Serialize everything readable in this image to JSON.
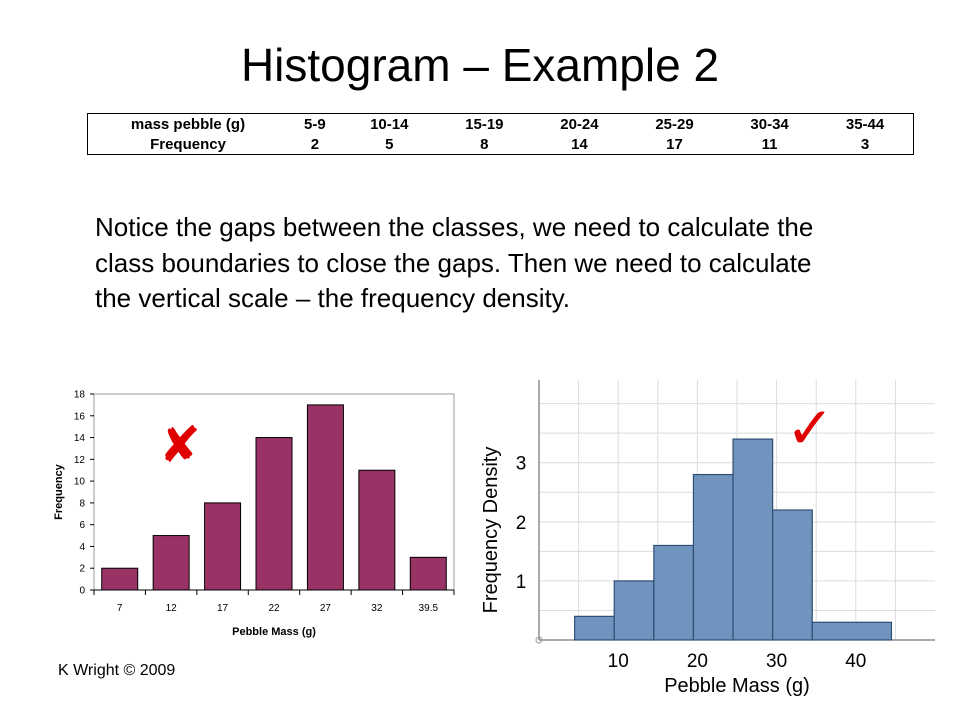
{
  "slide": {
    "title": "Histogram – Example 2",
    "paragraph": "Notice the gaps between the classes, we need to calculate the class boundaries to close the gaps. Then we need to calculate the vertical scale – the frequency density.",
    "footer": "K Wright © 2009",
    "wrong_mark": "✘",
    "right_mark": "✓"
  },
  "table": {
    "row_labels": [
      "mass pebble (g)",
      "Frequency"
    ],
    "classes": [
      "5-9",
      "10-14",
      "15-19",
      "20-24",
      "25-29",
      "30-34",
      "35-44"
    ],
    "frequencies": [
      "2",
      "5",
      "8",
      "14",
      "17",
      "11",
      "3"
    ]
  },
  "chart_data": [
    {
      "type": "bar",
      "categories": [
        "7",
        "12",
        "17",
        "22",
        "27",
        "32",
        "39.5"
      ],
      "values": [
        2,
        5,
        8,
        14,
        17,
        11,
        3
      ],
      "xlabel": "Pebble Mass (g)",
      "ylabel": "Frequency",
      "ylim": [
        0,
        18
      ],
      "yticks": [
        0,
        2,
        4,
        6,
        8,
        10,
        12,
        14,
        16,
        18
      ],
      "bar_color": "#993366"
    },
    {
      "type": "bar",
      "subtype": "histogram",
      "bins": [
        {
          "from": 4.5,
          "to": 9.5,
          "density": 0.4
        },
        {
          "from": 9.5,
          "to": 14.5,
          "density": 1.0
        },
        {
          "from": 14.5,
          "to": 19.5,
          "density": 1.6
        },
        {
          "from": 19.5,
          "to": 24.5,
          "density": 2.8
        },
        {
          "from": 24.5,
          "to": 29.5,
          "density": 3.4
        },
        {
          "from": 29.5,
          "to": 34.5,
          "density": 2.2
        },
        {
          "from": 34.5,
          "to": 44.5,
          "density": 0.3
        }
      ],
      "xlabel": "Pebble Mass (g)",
      "ylabel": "Frequency Density",
      "xlim": [
        0,
        50
      ],
      "ylim": [
        0,
        4.4
      ],
      "xticks": [
        10,
        20,
        30,
        40
      ],
      "yticks": [
        1,
        2,
        3
      ],
      "grid": true,
      "bar_color": "#7094BE"
    }
  ]
}
